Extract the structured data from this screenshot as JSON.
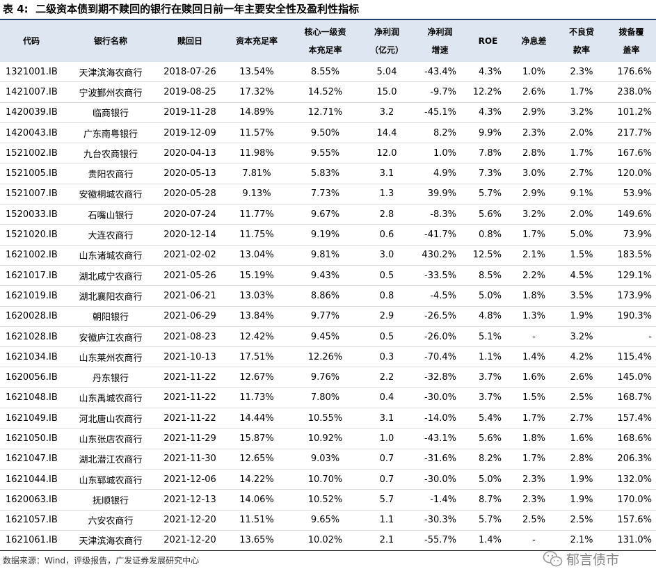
{
  "title": "表 4:  二级资本债到期不赎回的银行在赎回日前一年主要安全性及盈利性指标",
  "table": {
    "columns": [
      [
        "代码"
      ],
      [
        "银行名称"
      ],
      [
        "赎回日"
      ],
      [
        "资本充足率"
      ],
      [
        "核心一级资",
        "本充足率"
      ],
      [
        "净利润",
        "（亿元）"
      ],
      [
        "净利润",
        "增速"
      ],
      [
        "ROE"
      ],
      [
        "净息差"
      ],
      [
        "不良贷",
        "款率"
      ],
      [
        "拨备覆",
        "盖率"
      ]
    ],
    "rows": [
      [
        "1321001.IB",
        "天津滨海农商行",
        "2018-07-26",
        "13.54%",
        "8.55%",
        "5.04",
        "-43.4%",
        "4.3%",
        "1.0%",
        "2.3%",
        "176.6%"
      ],
      [
        "1421007.IB",
        "宁波鄞州农商行",
        "2019-08-25",
        "17.32%",
        "14.52%",
        "15.0",
        "-9.7%",
        "12.2%",
        "2.6%",
        "1.7%",
        "238.0%"
      ],
      [
        "1420039.IB",
        "临商银行",
        "2019-11-28",
        "14.89%",
        "12.71%",
        "3.2",
        "-45.1%",
        "4.3%",
        "2.9%",
        "3.2%",
        "101.2%"
      ],
      [
        "1420043.IB",
        "广东南粤银行",
        "2019-12-09",
        "11.57%",
        "9.50%",
        "14.4",
        "8.2%",
        "9.9%",
        "2.3%",
        "2.0%",
        "217.7%"
      ],
      [
        "1521002.IB",
        "九台农商银行",
        "2020-04-13",
        "11.98%",
        "9.55%",
        "12.0",
        "1.0%",
        "7.8%",
        "2.8%",
        "1.7%",
        "167.6%"
      ],
      [
        "1521005.IB",
        "贵阳农商行",
        "2020-05-13",
        "7.81%",
        "5.83%",
        "3.1",
        "4.9%",
        "7.3%",
        "3.0%",
        "2.7%",
        "120.0%"
      ],
      [
        "1521007.IB",
        "安徽桐城农商行",
        "2020-05-28",
        "9.13%",
        "7.73%",
        "1.3",
        "39.9%",
        "5.7%",
        "2.9%",
        "9.1%",
        "53.9%"
      ],
      [
        "1520033.IB",
        "石嘴山银行",
        "2020-07-24",
        "11.77%",
        "9.67%",
        "2.8",
        "-8.3%",
        "5.6%",
        "3.2%",
        "2.0%",
        "149.6%"
      ],
      [
        "1521020.IB",
        "大连农商行",
        "2020-12-14",
        "11.75%",
        "9.19%",
        "0.6",
        "-41.7%",
        "0.8%",
        "1.7%",
        "5.0%",
        "73.9%"
      ],
      [
        "1621002.IB",
        "山东诸城农商行",
        "2021-02-02",
        "13.04%",
        "9.81%",
        "3.0",
        "430.2%",
        "12.5%",
        "2.1%",
        "1.5%",
        "183.5%"
      ],
      [
        "1621017.IB",
        "湖北咸宁农商行",
        "2021-05-26",
        "15.19%",
        "9.43%",
        "0.5",
        "-33.5%",
        "8.5%",
        "2.2%",
        "4.5%",
        "129.1%"
      ],
      [
        "1621019.IB",
        "湖北襄阳农商行",
        "2021-06-21",
        "13.03%",
        "8.86%",
        "0.8",
        "-4.5%",
        "5.0%",
        "1.8%",
        "3.5%",
        "173.9%"
      ],
      [
        "1620028.IB",
        "朝阳银行",
        "2021-06-29",
        "13.84%",
        "9.77%",
        "2.9",
        "-26.5%",
        "4.8%",
        "1.3%",
        "1.9%",
        "190.3%"
      ],
      [
        "1621028.IB",
        "安徽庐江农商行",
        "2021-08-23",
        "12.42%",
        "9.45%",
        "0.5",
        "-26.0%",
        "5.1%",
        "-",
        "3.2%",
        "-"
      ],
      [
        "1621034.IB",
        "山东莱州农商行",
        "2021-10-13",
        "17.51%",
        "12.26%",
        "0.3",
        "-70.4%",
        "1.1%",
        "1.4%",
        "4.2%",
        "115.4%"
      ],
      [
        "1620056.IB",
        "丹东银行",
        "2021-11-22",
        "12.67%",
        "9.76%",
        "2.2",
        "-32.8%",
        "3.7%",
        "1.6%",
        "2.6%",
        "145.0%"
      ],
      [
        "1621048.IB",
        "山东禹城农商行",
        "2021-11-22",
        "11.73%",
        "7.80%",
        "0.4",
        "-30.0%",
        "3.7%",
        "1.5%",
        "2.5%",
        "168.7%"
      ],
      [
        "1621049.IB",
        "河北唐山农商行",
        "2021-11-22",
        "14.44%",
        "10.55%",
        "3.1",
        "-14.0%",
        "5.4%",
        "1.7%",
        "2.7%",
        "157.4%"
      ],
      [
        "1621050.IB",
        "山东张店农商行",
        "2021-11-29",
        "15.87%",
        "10.92%",
        "1.0",
        "-43.1%",
        "5.6%",
        "1.8%",
        "1.6%",
        "168.6%"
      ],
      [
        "1621047.IB",
        "湖北潜江农商行",
        "2021-11-30",
        "12.65%",
        "9.03%",
        "0.7",
        "-31.6%",
        "8.2%",
        "1.7%",
        "2.8%",
        "206.3%"
      ],
      [
        "1621044.IB",
        "山东郓城农商行",
        "2021-12-06",
        "14.22%",
        "10.70%",
        "0.7",
        "-30.0%",
        "5.0%",
        "2.3%",
        "1.9%",
        "132.0%"
      ],
      [
        "1620063.IB",
        "抚顺银行",
        "2021-12-13",
        "14.06%",
        "10.52%",
        "5.7",
        "-1.4%",
        "8.7%",
        "2.3%",
        "1.9%",
        "170.0%"
      ],
      [
        "1621057.IB",
        "六安农商行",
        "2021-12-20",
        "11.51%",
        "9.65%",
        "1.1",
        "-30.3%",
        "5.7%",
        "2.5%",
        "2.5%",
        "157.6%"
      ],
      [
        "1621061.IB",
        "天津滨海农商行",
        "2021-12-20",
        "13.65%",
        "10.02%",
        "2.1",
        "-55.7%",
        "1.4%",
        "-",
        "2.1%",
        "131.0%"
      ]
    ]
  },
  "source": "数据来源：Wind，评级报告，广发证券发展研究中心",
  "watermark": "郁言债市"
}
